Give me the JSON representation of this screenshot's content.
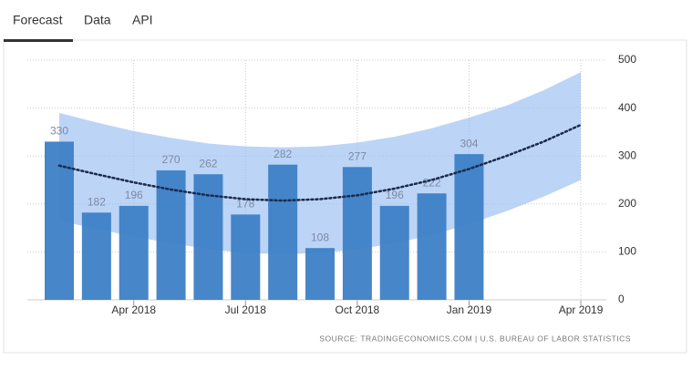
{
  "tabs": [
    "Forecast",
    "Data",
    "API"
  ],
  "chart_data": {
    "type": "bar",
    "categories": [
      null,
      null,
      "Apr 2018",
      null,
      null,
      "Jul 2018",
      null,
      null,
      "Oct 2018",
      null,
      null,
      "Jan 2019",
      null,
      null,
      "Apr 2019"
    ],
    "series": [
      {
        "type": "bar",
        "color": "#3d7fc6",
        "values": [
          330,
          182,
          196,
          270,
          262,
          178,
          282,
          108,
          277,
          196,
          222,
          304,
          null,
          null,
          null
        ]
      },
      {
        "type": "line",
        "color": "#1a2a4a",
        "values": [
          280,
          262,
          245,
          230,
          218,
          210,
          207,
          210,
          218,
          232,
          250,
          273,
          300,
          330,
          365
        ]
      }
    ],
    "band": {
      "color": "#8fb8f0",
      "upper": [
        390,
        370,
        352,
        338,
        326,
        320,
        318,
        320,
        328,
        340,
        358,
        380,
        405,
        437,
        475
      ],
      "lower": [
        165,
        148,
        132,
        118,
        106,
        98,
        95,
        98,
        105,
        118,
        135,
        158,
        185,
        215,
        250
      ]
    },
    "ylim": [
      0,
      500
    ],
    "yticks": [
      0,
      100,
      200,
      300,
      400,
      500
    ],
    "grid": true,
    "source": "SOURCE: TRADINGECONOMICS.COM | U.S. BUREAU OF LABOR STATISTICS"
  }
}
